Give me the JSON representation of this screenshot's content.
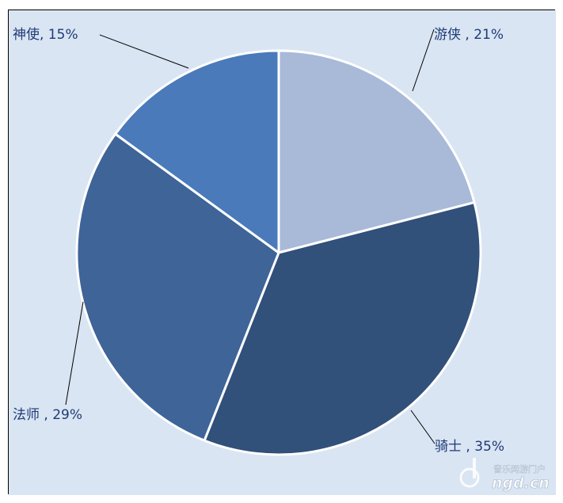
{
  "colors": {
    "background": "#d9e5f2",
    "border": "#000000",
    "slice_edge": "#ffffff",
    "label": "#1f3a78"
  },
  "watermark": {
    "site_name": "音乐网游门户",
    "logo_text": "ngd.cn"
  },
  "chart_data": {
    "type": "pie",
    "start_angle_deg": 0,
    "direction": "clockwise",
    "slices": [
      {
        "label": "游侠 , 21%",
        "category": "游侠",
        "percent": 21,
        "color": "#a9b9d8"
      },
      {
        "label": "骑士 , 35%",
        "category": "骑士",
        "percent": 35,
        "color": "#31507a"
      },
      {
        "label": "法师 , 29%",
        "category": "法师",
        "percent": 29,
        "color": "#3e6498"
      },
      {
        "label": "神使, 15%",
        "category": "神使",
        "percent": 15,
        "color": "#4a7aba"
      }
    ]
  }
}
